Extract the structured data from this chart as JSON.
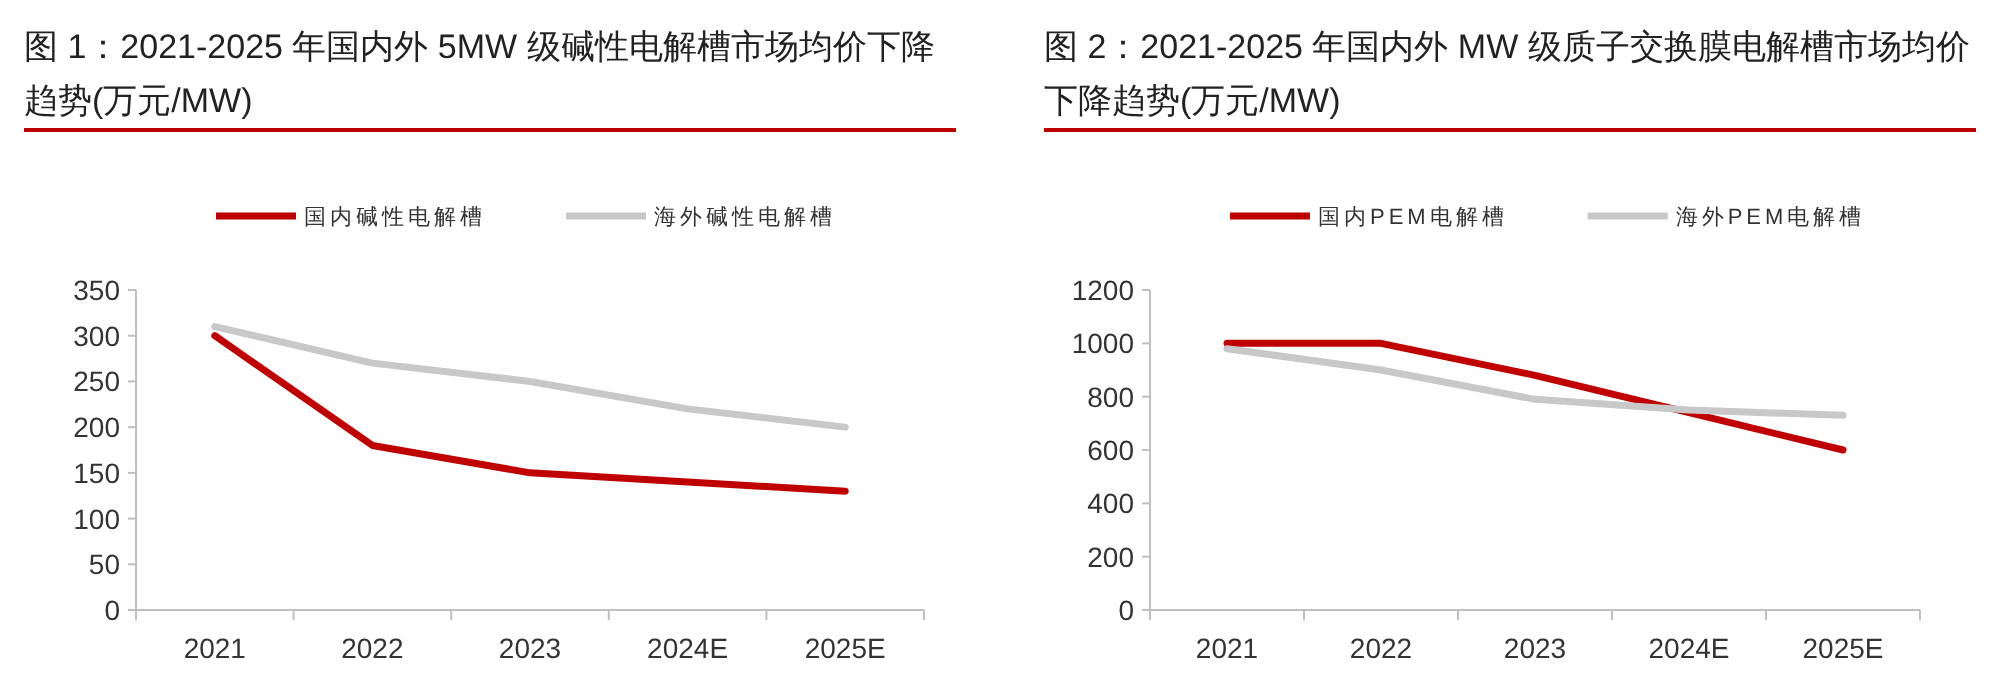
{
  "chart_data": [
    {
      "type": "line",
      "title": "图 1：2021-2025 年国内外 5MW 级碱性电解槽市场均价下降趋势(万元/MW)",
      "categories": [
        "2021",
        "2022",
        "2023",
        "2024E",
        "2025E"
      ],
      "ylim": [
        0,
        350
      ],
      "yticks": [
        0,
        50,
        100,
        150,
        200,
        250,
        300,
        350
      ],
      "legend": "top",
      "grid": false,
      "series": [
        {
          "name": "国内碱性电解槽",
          "color": "#c00000",
          "values": [
            300,
            180,
            150,
            140,
            130
          ]
        },
        {
          "name": "海外碱性电解槽",
          "color": "#c8c8c8",
          "values": [
            310,
            270,
            250,
            220,
            200
          ]
        }
      ]
    },
    {
      "type": "line",
      "title": "图 2：2021-2025 年国内外 MW 级质子交换膜电解槽市场均价下降趋势(万元/MW)",
      "categories": [
        "2021",
        "2022",
        "2023",
        "2024E",
        "2025E"
      ],
      "ylim": [
        0,
        1200
      ],
      "yticks": [
        0,
        200,
        400,
        600,
        800,
        1000,
        1200
      ],
      "legend": "top",
      "grid": false,
      "series": [
        {
          "name": "国内PEM电解槽",
          "color": "#c00000",
          "values": [
            1000,
            1000,
            880,
            740,
            600
          ]
        },
        {
          "name": "海外PEM电解槽",
          "color": "#c8c8c8",
          "values": [
            980,
            900,
            790,
            750,
            730
          ]
        }
      ]
    }
  ]
}
